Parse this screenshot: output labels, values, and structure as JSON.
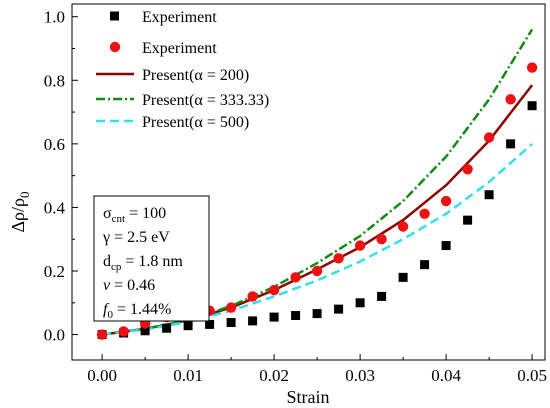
{
  "chart_data": {
    "type": "scatter",
    "xlabel": "Strain",
    "ylabel": "Δρ/ρ",
    "ylabel_subscript": "0",
    "xlim": [
      -0.0035,
      0.0515
    ],
    "ylim": [
      -0.08,
      1.04
    ],
    "xticks": [
      0.0,
      0.01,
      0.02,
      0.03,
      0.04,
      0.05
    ],
    "xtick_labels": [
      "0.00",
      "0.01",
      "0.02",
      "0.03",
      "0.04",
      "0.05"
    ],
    "yticks": [
      0.0,
      0.2,
      0.4,
      0.6,
      0.8,
      1.0
    ],
    "ytick_labels": [
      "0.0",
      "0.2",
      "0.4",
      "0.6",
      "0.8",
      "1.0"
    ],
    "grid": false,
    "legend_position": "top-left",
    "series": [
      {
        "name": "Experiment",
        "kind": "marker",
        "marker": "square",
        "color": "#000000",
        "x": [
          0.0,
          0.0025,
          0.005,
          0.0075,
          0.01,
          0.0125,
          0.015,
          0.0175,
          0.02,
          0.0225,
          0.025,
          0.0275,
          0.03,
          0.0325,
          0.035,
          0.0375,
          0.04,
          0.0425,
          0.045,
          0.0475,
          0.05
        ],
        "y": [
          0.0,
          0.005,
          0.012,
          0.02,
          0.028,
          0.032,
          0.038,
          0.043,
          0.055,
          0.06,
          0.066,
          0.08,
          0.1,
          0.12,
          0.18,
          0.22,
          0.28,
          0.36,
          0.44,
          0.6,
          0.72
        ]
      },
      {
        "name": "Experiment",
        "kind": "marker",
        "marker": "circle",
        "color": "#ee1111",
        "x": [
          0.0,
          0.0025,
          0.005,
          0.0075,
          0.01,
          0.0125,
          0.015,
          0.0175,
          0.02,
          0.0225,
          0.025,
          0.0275,
          0.03,
          0.0325,
          0.035,
          0.0375,
          0.04,
          0.0425,
          0.045,
          0.0475,
          0.05
        ],
        "y": [
          0.0,
          0.01,
          0.035,
          0.055,
          0.065,
          0.075,
          0.085,
          0.12,
          0.14,
          0.18,
          0.2,
          0.24,
          0.28,
          0.3,
          0.34,
          0.38,
          0.42,
          0.52,
          0.62,
          0.74,
          0.84
        ]
      },
      {
        "name": "Present(α = 200)",
        "kind": "line",
        "dash": "solid",
        "color": "#8b0000",
        "x": [
          0.0,
          0.005,
          0.01,
          0.015,
          0.02,
          0.025,
          0.03,
          0.035,
          0.04,
          0.045,
          0.05
        ],
        "y": [
          0.0,
          0.018,
          0.045,
          0.085,
          0.14,
          0.205,
          0.275,
          0.36,
          0.47,
          0.61,
          0.785
        ]
      },
      {
        "name": "Present(α = 333.33)",
        "kind": "line",
        "dash": "dashdot",
        "color": "#128a12",
        "x": [
          0.0,
          0.005,
          0.01,
          0.015,
          0.02,
          0.025,
          0.03,
          0.035,
          0.04,
          0.045,
          0.05
        ],
        "y": [
          0.0,
          0.018,
          0.045,
          0.09,
          0.15,
          0.225,
          0.31,
          0.42,
          0.56,
          0.74,
          0.96
        ]
      },
      {
        "name": "Present(α = 500)",
        "kind": "line",
        "dash": "dashed",
        "color": "#33dfe8",
        "x": [
          0.0,
          0.005,
          0.01,
          0.015,
          0.02,
          0.025,
          0.03,
          0.035,
          0.04,
          0.045,
          0.05
        ],
        "y": [
          0.0,
          0.016,
          0.04,
          0.075,
          0.12,
          0.17,
          0.23,
          0.3,
          0.38,
          0.48,
          0.6
        ]
      }
    ],
    "annotation": {
      "sigma_cnt": "100",
      "gamma": "2.5 eV",
      "d_cp": "1.8 nm",
      "nu": "0.46",
      "f0": "1.44%"
    }
  }
}
